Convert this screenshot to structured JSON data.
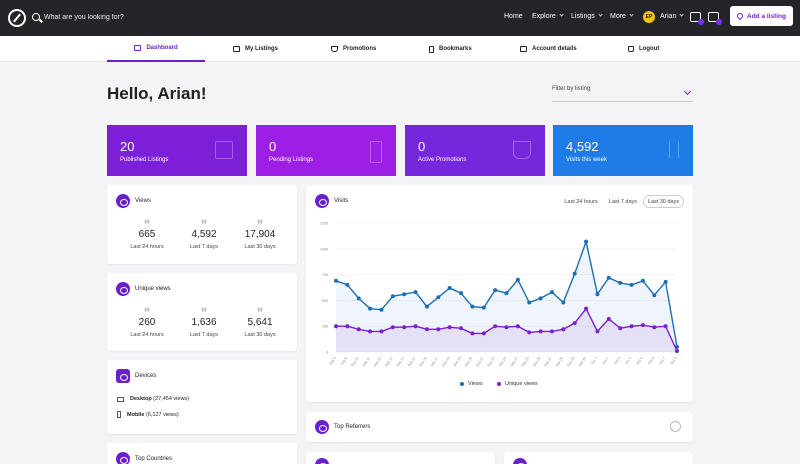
{
  "header": {
    "search_placeholder": "What are you looking for?",
    "nav": [
      {
        "label": "Home"
      },
      {
        "label": "Explore"
      },
      {
        "label": "Listings"
      },
      {
        "label": "More"
      }
    ],
    "user": {
      "initials": "EP",
      "name": "Arian"
    },
    "add_listing": "Add a listing"
  },
  "tabs": [
    {
      "label": "Dashboard"
    },
    {
      "label": "My Listings"
    },
    {
      "label": "Promotions"
    },
    {
      "label": "Bookmarks"
    },
    {
      "label": "Account details"
    },
    {
      "label": "Logout"
    }
  ],
  "greeting": "Hello, Arian!",
  "filter": {
    "label": "Filter by listing"
  },
  "stats": [
    {
      "value": "20",
      "label": "Published Listings",
      "color": "#7b1fd8"
    },
    {
      "value": "0",
      "label": "Pending Listings",
      "color": "#9d1fe6"
    },
    {
      "value": "0",
      "label": "Active Promotions",
      "color": "#7527dc"
    },
    {
      "value": "4,592",
      "label": "Visits this week",
      "color": "#1f7ce6"
    }
  ],
  "views": {
    "title": "Views",
    "metrics": [
      {
        "value": "665",
        "label": "Last 24 hours"
      },
      {
        "value": "4,592",
        "label": "Last 7 days"
      },
      {
        "value": "17,904",
        "label": "Last 30 days"
      }
    ]
  },
  "unique_views": {
    "title": "Unique views",
    "metrics": [
      {
        "value": "260",
        "label": "Last 24 hours"
      },
      {
        "value": "1,636",
        "label": "Last 7 days"
      },
      {
        "value": "5,641",
        "label": "Last 30 days"
      }
    ]
  },
  "devices": {
    "title": "Devices",
    "items": [
      {
        "name": "Desktop",
        "count": "(27,454 views)"
      },
      {
        "name": "Mobile",
        "count": "(6,127 views)"
      }
    ]
  },
  "top_countries": {
    "title": "Top Countries"
  },
  "visits": {
    "title": "Visits",
    "ranges": [
      "Last 24 hours",
      "Last 7 days",
      "Last 30 days"
    ]
  },
  "top_referrers": {
    "title": "Top Referrers"
  },
  "chart_data": {
    "type": "line",
    "ylim": [
      0,
      1250
    ],
    "yticks": [
      "0",
      "250",
      "500",
      "750",
      "1000",
      "1250"
    ],
    "x": [
      "Sep 8",
      "Sep 9",
      "Sep 10",
      "Sep 11",
      "Sep 12",
      "Sep 13",
      "Sep 14",
      "Sep 15",
      "Sep 16",
      "Sep 17",
      "Sep 18",
      "Sep 19",
      "Sep 20",
      "Sep 21",
      "Sep 22",
      "Sep 23",
      "Sep 24",
      "Sep 25",
      "Sep 26",
      "Sep 27",
      "Sep 28",
      "Sep 29",
      "Sep 30",
      "Oct 1",
      "Oct 2",
      "Oct 3",
      "Oct 4",
      "Oct 5",
      "Oct 6",
      "Oct 7",
      "Oct 8"
    ],
    "series": [
      {
        "name": "Views",
        "color": "#1a6fb5",
        "values": [
          690,
          650,
          520,
          420,
          410,
          540,
          560,
          580,
          440,
          530,
          620,
          570,
          440,
          430,
          600,
          570,
          700,
          480,
          520,
          580,
          480,
          760,
          1070,
          560,
          720,
          670,
          650,
          690,
          550,
          680,
          50
        ]
      },
      {
        "name": "Unique views",
        "color": "#7b1fd0",
        "values": [
          250,
          250,
          220,
          200,
          200,
          240,
          240,
          250,
          220,
          220,
          240,
          230,
          180,
          180,
          250,
          240,
          250,
          190,
          200,
          200,
          220,
          280,
          420,
          200,
          320,
          230,
          250,
          260,
          240,
          250,
          10
        ]
      }
    ]
  }
}
